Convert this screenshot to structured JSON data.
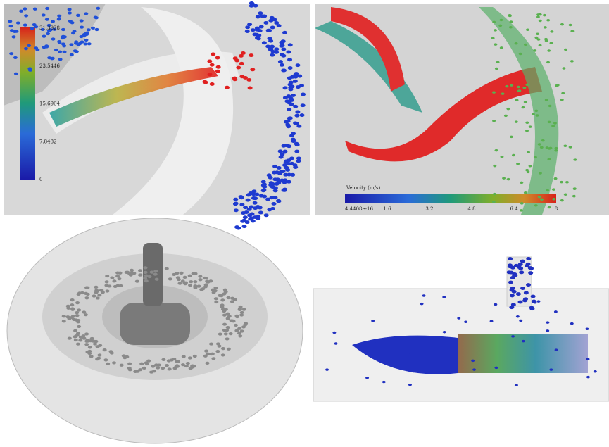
{
  "panels": {
    "top_left": {
      "colorbar": {
        "labels": [
          "31.3928",
          "23.5446",
          "15.6964",
          "7.8482",
          "0"
        ]
      }
    },
    "top_right": {
      "colorbar": {
        "title": "Velocity (m/s)",
        "labels": [
          "4.4408e-16",
          "1.6",
          "3.2",
          "4.8",
          "6.4",
          "8"
        ]
      }
    }
  }
}
